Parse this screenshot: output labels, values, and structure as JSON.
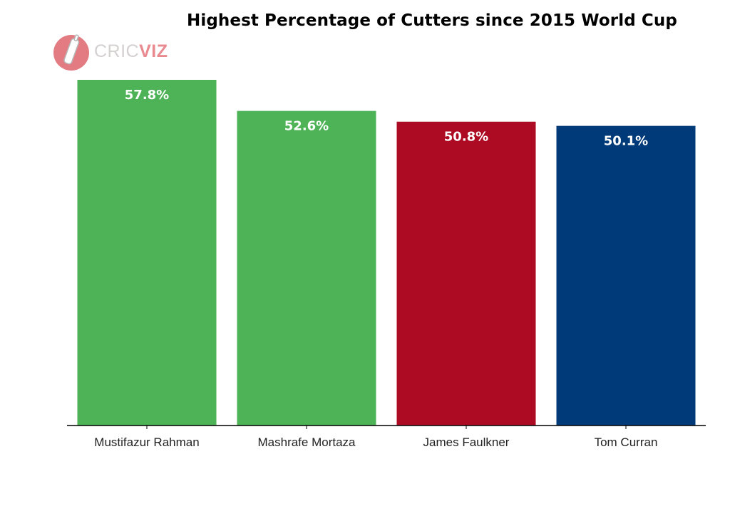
{
  "title": "Highest Percentage of Cutters since 2015 World Cup",
  "logo": {
    "text_part1": "CRIC",
    "text_part2": "VIZ",
    "icon": "cricket-bat-ball-icon"
  },
  "chart_data": {
    "type": "bar",
    "title": "Highest Percentage of Cutters since 2015 World Cup",
    "xlabel": "",
    "ylabel": "",
    "categories": [
      "Mustifazur Rahman",
      "Mashrafe Mortaza",
      "James Faulkner",
      "Tom Curran"
    ],
    "values": [
      57.8,
      52.6,
      50.8,
      50.1
    ],
    "value_labels": [
      "57.8%",
      "52.6%",
      "50.8%",
      "50.1%"
    ],
    "colors": [
      "#4db356",
      "#4db356",
      "#ad0b23",
      "#003a78"
    ],
    "ylim": [
      0,
      57.8
    ],
    "grid": false,
    "legend": "none"
  }
}
